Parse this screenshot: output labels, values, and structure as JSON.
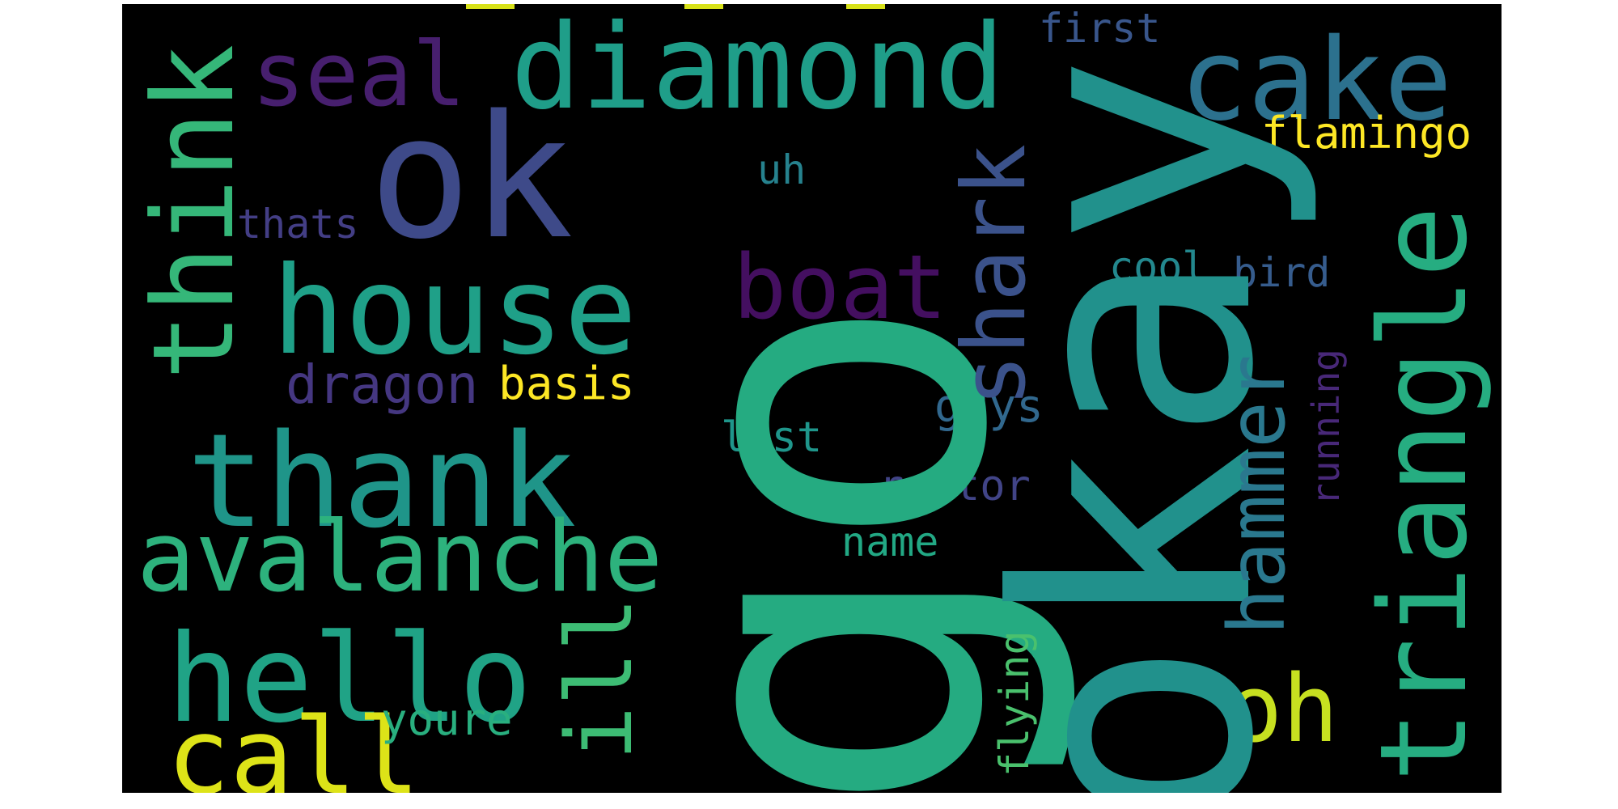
{
  "background": "#000000",
  "page_background": "#ffffff",
  "words": [
    {
      "text": "go",
      "color": "#25ab81"
    },
    {
      "text": "okay",
      "color": "#21918c"
    },
    {
      "text": "ok",
      "color": "#3e4a89"
    },
    {
      "text": "diamond",
      "color": "#1f9e89"
    },
    {
      "text": "cake",
      "color": "#2c718e"
    },
    {
      "text": "seal",
      "color": "#471f6e"
    },
    {
      "text": "think",
      "color": "#35b779"
    },
    {
      "text": "house",
      "color": "#1fa088"
    },
    {
      "text": "thank",
      "color": "#1f9589"
    },
    {
      "text": "avalanche",
      "color": "#2db27d"
    },
    {
      "text": "hello",
      "color": "#20a386"
    },
    {
      "text": "call",
      "color": "#dde318"
    },
    {
      "text": "boat",
      "color": "#440f60"
    },
    {
      "text": "shark",
      "color": "#3b528b"
    },
    {
      "text": "triangle",
      "color": "#26ad81"
    },
    {
      "text": "hammer",
      "color": "#2a788e"
    },
    {
      "text": "oh",
      "color": "#c7e020"
    },
    {
      "text": "ill",
      "color": "#3dbc74"
    },
    {
      "text": "flamingo",
      "color": "#fde725"
    },
    {
      "text": "first",
      "color": "#39568c"
    },
    {
      "text": "uh",
      "color": "#26828e"
    },
    {
      "text": "thats",
      "color": "#433e85"
    },
    {
      "text": "cool",
      "color": "#23888e"
    },
    {
      "text": "bird",
      "color": "#365c8d"
    },
    {
      "text": "dragon",
      "color": "#453781"
    },
    {
      "text": "basis",
      "color": "#fde725"
    },
    {
      "text": "last",
      "color": "#1f968b"
    },
    {
      "text": "guys",
      "color": "#31688e"
    },
    {
      "text": "running",
      "color": "#482878"
    },
    {
      "text": "raptor",
      "color": "#414487"
    },
    {
      "text": "name",
      "color": "#22a884"
    },
    {
      "text": "youre",
      "color": "#29af7f"
    },
    {
      "text": "flying",
      "color": "#4ac16d"
    }
  ]
}
